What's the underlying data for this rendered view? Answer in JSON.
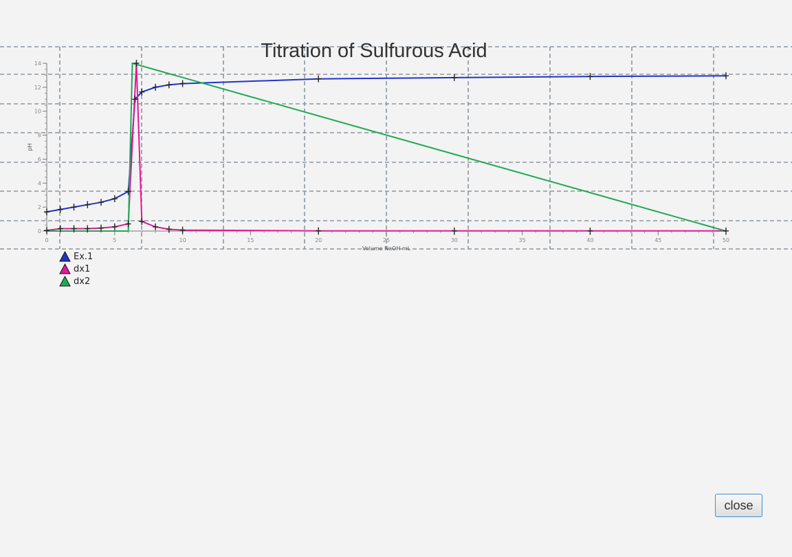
{
  "chart_data": {
    "type": "line",
    "title": "Titration of Sulfurous Acid",
    "xlabel": "Volume NaOH mL",
    "ylabel": "pH",
    "xlim": [
      0,
      50
    ],
    "ylim": [
      0,
      14
    ],
    "x_ticks": [
      "0",
      "5",
      "10",
      "15",
      "20",
      "25",
      "30",
      "35",
      "40",
      "45",
      "50"
    ],
    "y_ticks": [
      "0",
      "2",
      "4",
      "6",
      "8",
      "10",
      "12",
      "14"
    ],
    "grid": true,
    "legend_position": "bottom-left",
    "series": [
      {
        "name": "Ex.1",
        "color": "#2233cc",
        "x": [
          0,
          1,
          2,
          3,
          4,
          5,
          6,
          6.5,
          7,
          8,
          9,
          10,
          20,
          30,
          40,
          50
        ],
        "y": [
          1.6,
          1.8,
          2.0,
          2.2,
          2.4,
          2.7,
          3.3,
          11.0,
          11.6,
          12.0,
          12.2,
          12.3,
          12.7,
          12.8,
          12.9,
          12.95
        ]
      },
      {
        "name": "dx1",
        "color": "#e0189a",
        "x": [
          0,
          1,
          2,
          3,
          4,
          5,
          6,
          6.6,
          7,
          8,
          9,
          10,
          20,
          30,
          40,
          50
        ],
        "y": [
          0.05,
          0.2,
          0.2,
          0.2,
          0.25,
          0.35,
          0.6,
          14,
          0.8,
          0.35,
          0.15,
          0.08,
          0.02,
          0.01,
          0.01,
          0.01
        ]
      },
      {
        "name": "dx2",
        "color": "#1faa55",
        "x": [
          0,
          6,
          6.3,
          50
        ],
        "y": [
          0,
          0,
          14,
          0
        ]
      }
    ]
  },
  "legend": {
    "items": [
      {
        "label": "Ex.1",
        "color": "#2233cc"
      },
      {
        "label": "dx1",
        "color": "#e0189a"
      },
      {
        "label": "dx2",
        "color": "#1faa55"
      }
    ]
  },
  "buttons": {
    "close_label": "close"
  }
}
